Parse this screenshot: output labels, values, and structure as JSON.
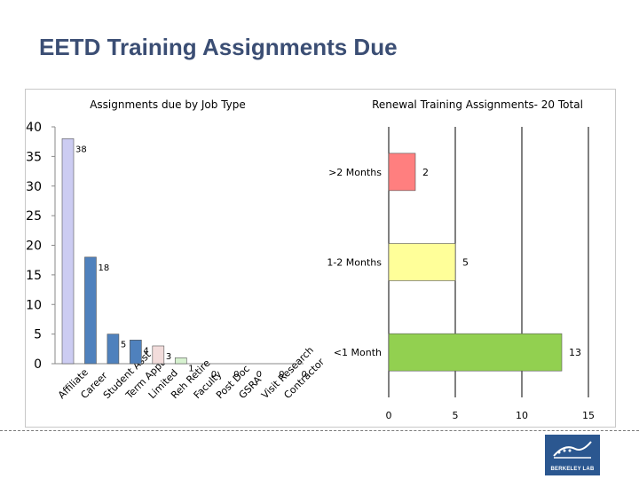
{
  "slide": {
    "title": "EETD Training Assignments Due"
  },
  "logo": {
    "text": "BERKELEY LAB"
  },
  "chart_data": [
    {
      "type": "bar",
      "title": "Assignments due by Job Type",
      "categories": [
        "Affiliate",
        "Career",
        "Student Asst",
        "Term Appt",
        "Limited",
        "Reh Retire",
        "Faculty",
        "Post Doc",
        "GSRA",
        "Visit Research",
        "Contractor"
      ],
      "values": [
        38,
        18,
        5,
        4,
        3,
        1,
        0,
        0,
        0,
        0,
        0
      ],
      "data_labels": [
        "38",
        "18",
        "5",
        "4",
        "3",
        "1",
        "0",
        "0",
        "0",
        "0",
        "0"
      ],
      "colors": [
        "#ccccf2",
        "#4f81bd",
        "#4f81bd",
        "#4f81bd",
        "#f2dcdb",
        "#d7f2d0",
        "#ffffff",
        "#ffffff",
        "#ffffff",
        "#ffffff",
        "#ffffff"
      ],
      "ylim": [
        0,
        40
      ],
      "yticks": [
        "0",
        "5",
        "10",
        "15",
        "20",
        "25",
        "30",
        "35",
        "40"
      ],
      "xlabel": "",
      "ylabel": ""
    },
    {
      "type": "bar",
      "orientation": "horizontal",
      "title": "Renewal Training Assignments- 20 Total",
      "categories": [
        ">2 Months",
        "1-2 Months",
        "<1 Month"
      ],
      "values": [
        2,
        5,
        13
      ],
      "data_labels": [
        "2",
        "5",
        "13"
      ],
      "colors": [
        "#ff7f7f",
        "#ffff99",
        "#92d050"
      ],
      "xlim": [
        0,
        15
      ],
      "xticks": [
        "0",
        "5",
        "10",
        "15"
      ],
      "grid": true,
      "xlabel": "",
      "ylabel": ""
    }
  ]
}
